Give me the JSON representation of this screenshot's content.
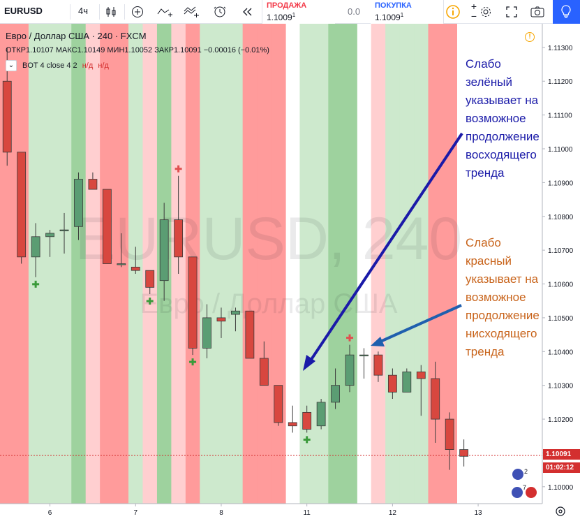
{
  "toolbar": {
    "symbol": "EURUSD",
    "interval": "4ч",
    "sell_label": "ПРОДАЖА",
    "sell_price": "1.1009",
    "sell_sup": "1",
    "spread": "0.0",
    "buy_label": "ПОКУПКА",
    "buy_price": "1.1009",
    "buy_sup": "1",
    "icons": [
      "bar-style-icon",
      "add-indicator-icon",
      "indicators-icon",
      "templates-icon",
      "alert-icon",
      "replay-icon",
      "info-icon",
      "plus-icon",
      "minus-icon",
      "settings-icon",
      "fullscreen-icon",
      "snapshot-icon",
      "idea-icon"
    ]
  },
  "legend": {
    "title": "Евро / Доллар США · 240 · FXCM",
    "ohlc": "ОТКР1.10107 МАКС1.10149 МИН1.10052 ЗАКР1.10091 −0.00016 (−0.01%)",
    "indicator": "BOT 4 close 4 2",
    "na1": "н/д",
    "na2": "н/д"
  },
  "watermark": {
    "main": "EURUSD, 240",
    "sub": "Евро / Доллар США"
  },
  "annotations": {
    "green": "Слабо\nзелёный\nуказывает на\nвозможное\nпродолжение\nвосходящего\nтренда",
    "red": "Слабо\nкрасный\nуказывает на\nвозможное\nпродолжение\nнисходящего\nтренда"
  },
  "price_axis": {
    "labels": [
      "1.11300",
      "1.11200",
      "1.11100",
      "1.11000",
      "1.10900",
      "1.10800",
      "1.10700",
      "1.10600",
      "1.10500",
      "1.10400",
      "1.10300",
      "1.10200",
      "1.10100",
      "1.10000"
    ],
    "current_price": "1.10091",
    "countdown": "01:02:12"
  },
  "time_axis": {
    "labels": [
      "6",
      "7",
      "8",
      "11",
      "12",
      "13"
    ]
  },
  "colors": {
    "strong_red": "#ff9b9b",
    "weak_red": "#ffcfd0",
    "strong_green": "#9ed29e",
    "weak_green": "#cde9cd",
    "up_candle": "#5b9d73",
    "down_candle": "#d8473f",
    "arrow_green": "#1a1aa8",
    "arrow_red": "#1f5fae",
    "annotation_green_text": "#1a1aa8",
    "annotation_red_text": "#c8631a",
    "buy_signal": "#3a9a3a",
    "sell_signal": "#e05050",
    "sell_label": "#f23645",
    "buy_label": "#2962ff"
  },
  "chart_data": {
    "type": "candlestick",
    "ylim": [
      1.0995,
      1.1137
    ],
    "candles": [
      {
        "o": 1.112,
        "h": 1.113,
        "l": 1.1095,
        "c": 1.1099
      },
      {
        "o": 1.1099,
        "h": 1.1099,
        "l": 1.1066,
        "c": 1.1068
      },
      {
        "o": 1.1068,
        "h": 1.1078,
        "l": 1.1062,
        "c": 1.1074
      },
      {
        "o": 1.1074,
        "h": 1.1076,
        "l": 1.1068,
        "c": 1.1075
      },
      {
        "o": 1.1076,
        "h": 1.1081,
        "l": 1.1069,
        "c": 1.1076
      },
      {
        "o": 1.1077,
        "h": 1.1093,
        "l": 1.1073,
        "c": 1.1091
      },
      {
        "o": 1.1091,
        "h": 1.1093,
        "l": 1.1088,
        "c": 1.1088
      },
      {
        "o": 1.1088,
        "h": 1.1088,
        "l": 1.1066,
        "c": 1.1066
      },
      {
        "o": 1.1066,
        "h": 1.1075,
        "l": 1.1065,
        "c": 1.1066
      },
      {
        "o": 1.1065,
        "h": 1.1071,
        "l": 1.1063,
        "c": 1.1064
      },
      {
        "o": 1.1064,
        "h": 1.1064,
        "l": 1.1057,
        "c": 1.1059
      },
      {
        "o": 1.1061,
        "h": 1.1084,
        "l": 1.1055,
        "c": 1.1079
      },
      {
        "o": 1.1079,
        "h": 1.1092,
        "l": 1.1063,
        "c": 1.1068
      },
      {
        "o": 1.1068,
        "h": 1.1068,
        "l": 1.1039,
        "c": 1.1041
      },
      {
        "o": 1.1041,
        "h": 1.1054,
        "l": 1.1038,
        "c": 1.105
      },
      {
        "o": 1.105,
        "h": 1.1053,
        "l": 1.1044,
        "c": 1.1049
      },
      {
        "o": 1.1051,
        "h": 1.1053,
        "l": 1.1046,
        "c": 1.1052
      },
      {
        "o": 1.1052,
        "h": 1.1052,
        "l": 1.1038,
        "c": 1.1038
      },
      {
        "o": 1.1038,
        "h": 1.1043,
        "l": 1.103,
        "c": 1.103
      },
      {
        "o": 1.103,
        "h": 1.103,
        "l": 1.1018,
        "c": 1.1019
      },
      {
        "o": 1.1019,
        "h": 1.1024,
        "l": 1.1016,
        "c": 1.1018
      },
      {
        "o": 1.1022,
        "h": 1.1024,
        "l": 1.1016,
        "c": 1.1017
      },
      {
        "o": 1.1018,
        "h": 1.1026,
        "l": 1.1017,
        "c": 1.1025
      },
      {
        "o": 1.1025,
        "h": 1.1035,
        "l": 1.1023,
        "c": 1.103
      },
      {
        "o": 1.103,
        "h": 1.1042,
        "l": 1.1028,
        "c": 1.1039
      },
      {
        "o": 1.1039,
        "h": 1.1041,
        "l": 1.1032,
        "c": 1.1039
      },
      {
        "o": 1.1039,
        "h": 1.104,
        "l": 1.1031,
        "c": 1.1033
      },
      {
        "o": 1.1033,
        "h": 1.1035,
        "l": 1.1026,
        "c": 1.1028
      },
      {
        "o": 1.1028,
        "h": 1.1035,
        "l": 1.1028,
        "c": 1.1034
      },
      {
        "o": 1.1034,
        "h": 1.1036,
        "l": 1.1021,
        "c": 1.1032
      },
      {
        "o": 1.1032,
        "h": 1.1037,
        "l": 1.1013,
        "c": 1.102
      },
      {
        "o": 1.102,
        "h": 1.1022,
        "l": 1.1005,
        "c": 1.1011
      },
      {
        "o": 1.1011,
        "h": 1.1014,
        "l": 1.1006,
        "c": 1.1009
      }
    ],
    "zones": [
      "strong_red",
      "strong_red",
      "weak_green",
      "weak_green",
      "weak_green",
      "strong_green",
      "weak_red",
      "strong_red",
      "strong_red",
      "weak_green",
      "weak_red",
      "strong_green",
      "weak_red",
      "strong_red",
      "weak_green",
      "weak_green",
      "weak_green",
      "strong_red",
      "strong_red",
      "strong_red",
      "none",
      "weak_green",
      "weak_green",
      "strong_green",
      "strong_green",
      "none",
      "weak_red",
      "weak_green",
      "weak_green",
      "weak_green",
      "strong_red",
      "strong_red",
      "none"
    ],
    "buy_signals": [
      2,
      10,
      13,
      21
    ],
    "sell_signals": [
      12,
      24
    ]
  }
}
